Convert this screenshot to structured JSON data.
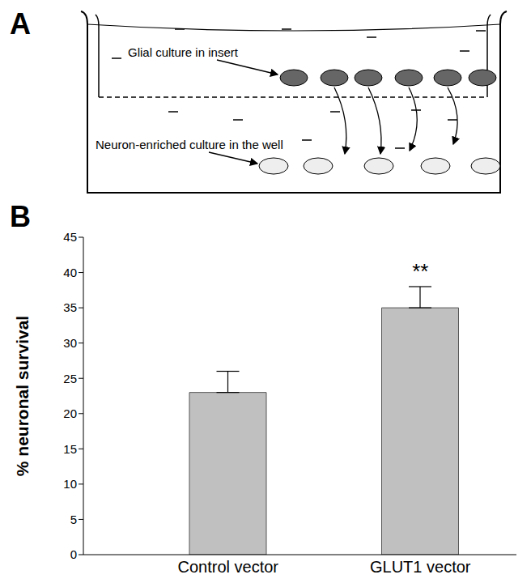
{
  "panel_labels": [
    "A",
    "B"
  ],
  "diagram": {
    "glial_label": "Glial culture in insert",
    "neuron_label": "Neuron-enriched culture in the well"
  },
  "chart_data": {
    "type": "bar",
    "categories": [
      "Control vector",
      "GLUT1 vector"
    ],
    "values": [
      23,
      35
    ],
    "errors": [
      3,
      3
    ],
    "color": "#c0c0c0",
    "ylabel": "% neuronal survival",
    "ylim": [
      0,
      45
    ],
    "yticks": [
      0,
      5,
      10,
      15,
      20,
      25,
      30,
      35,
      40,
      45
    ],
    "grid": false,
    "annotations": [
      {
        "category": "GLUT1 vector",
        "text": "**"
      }
    ]
  }
}
